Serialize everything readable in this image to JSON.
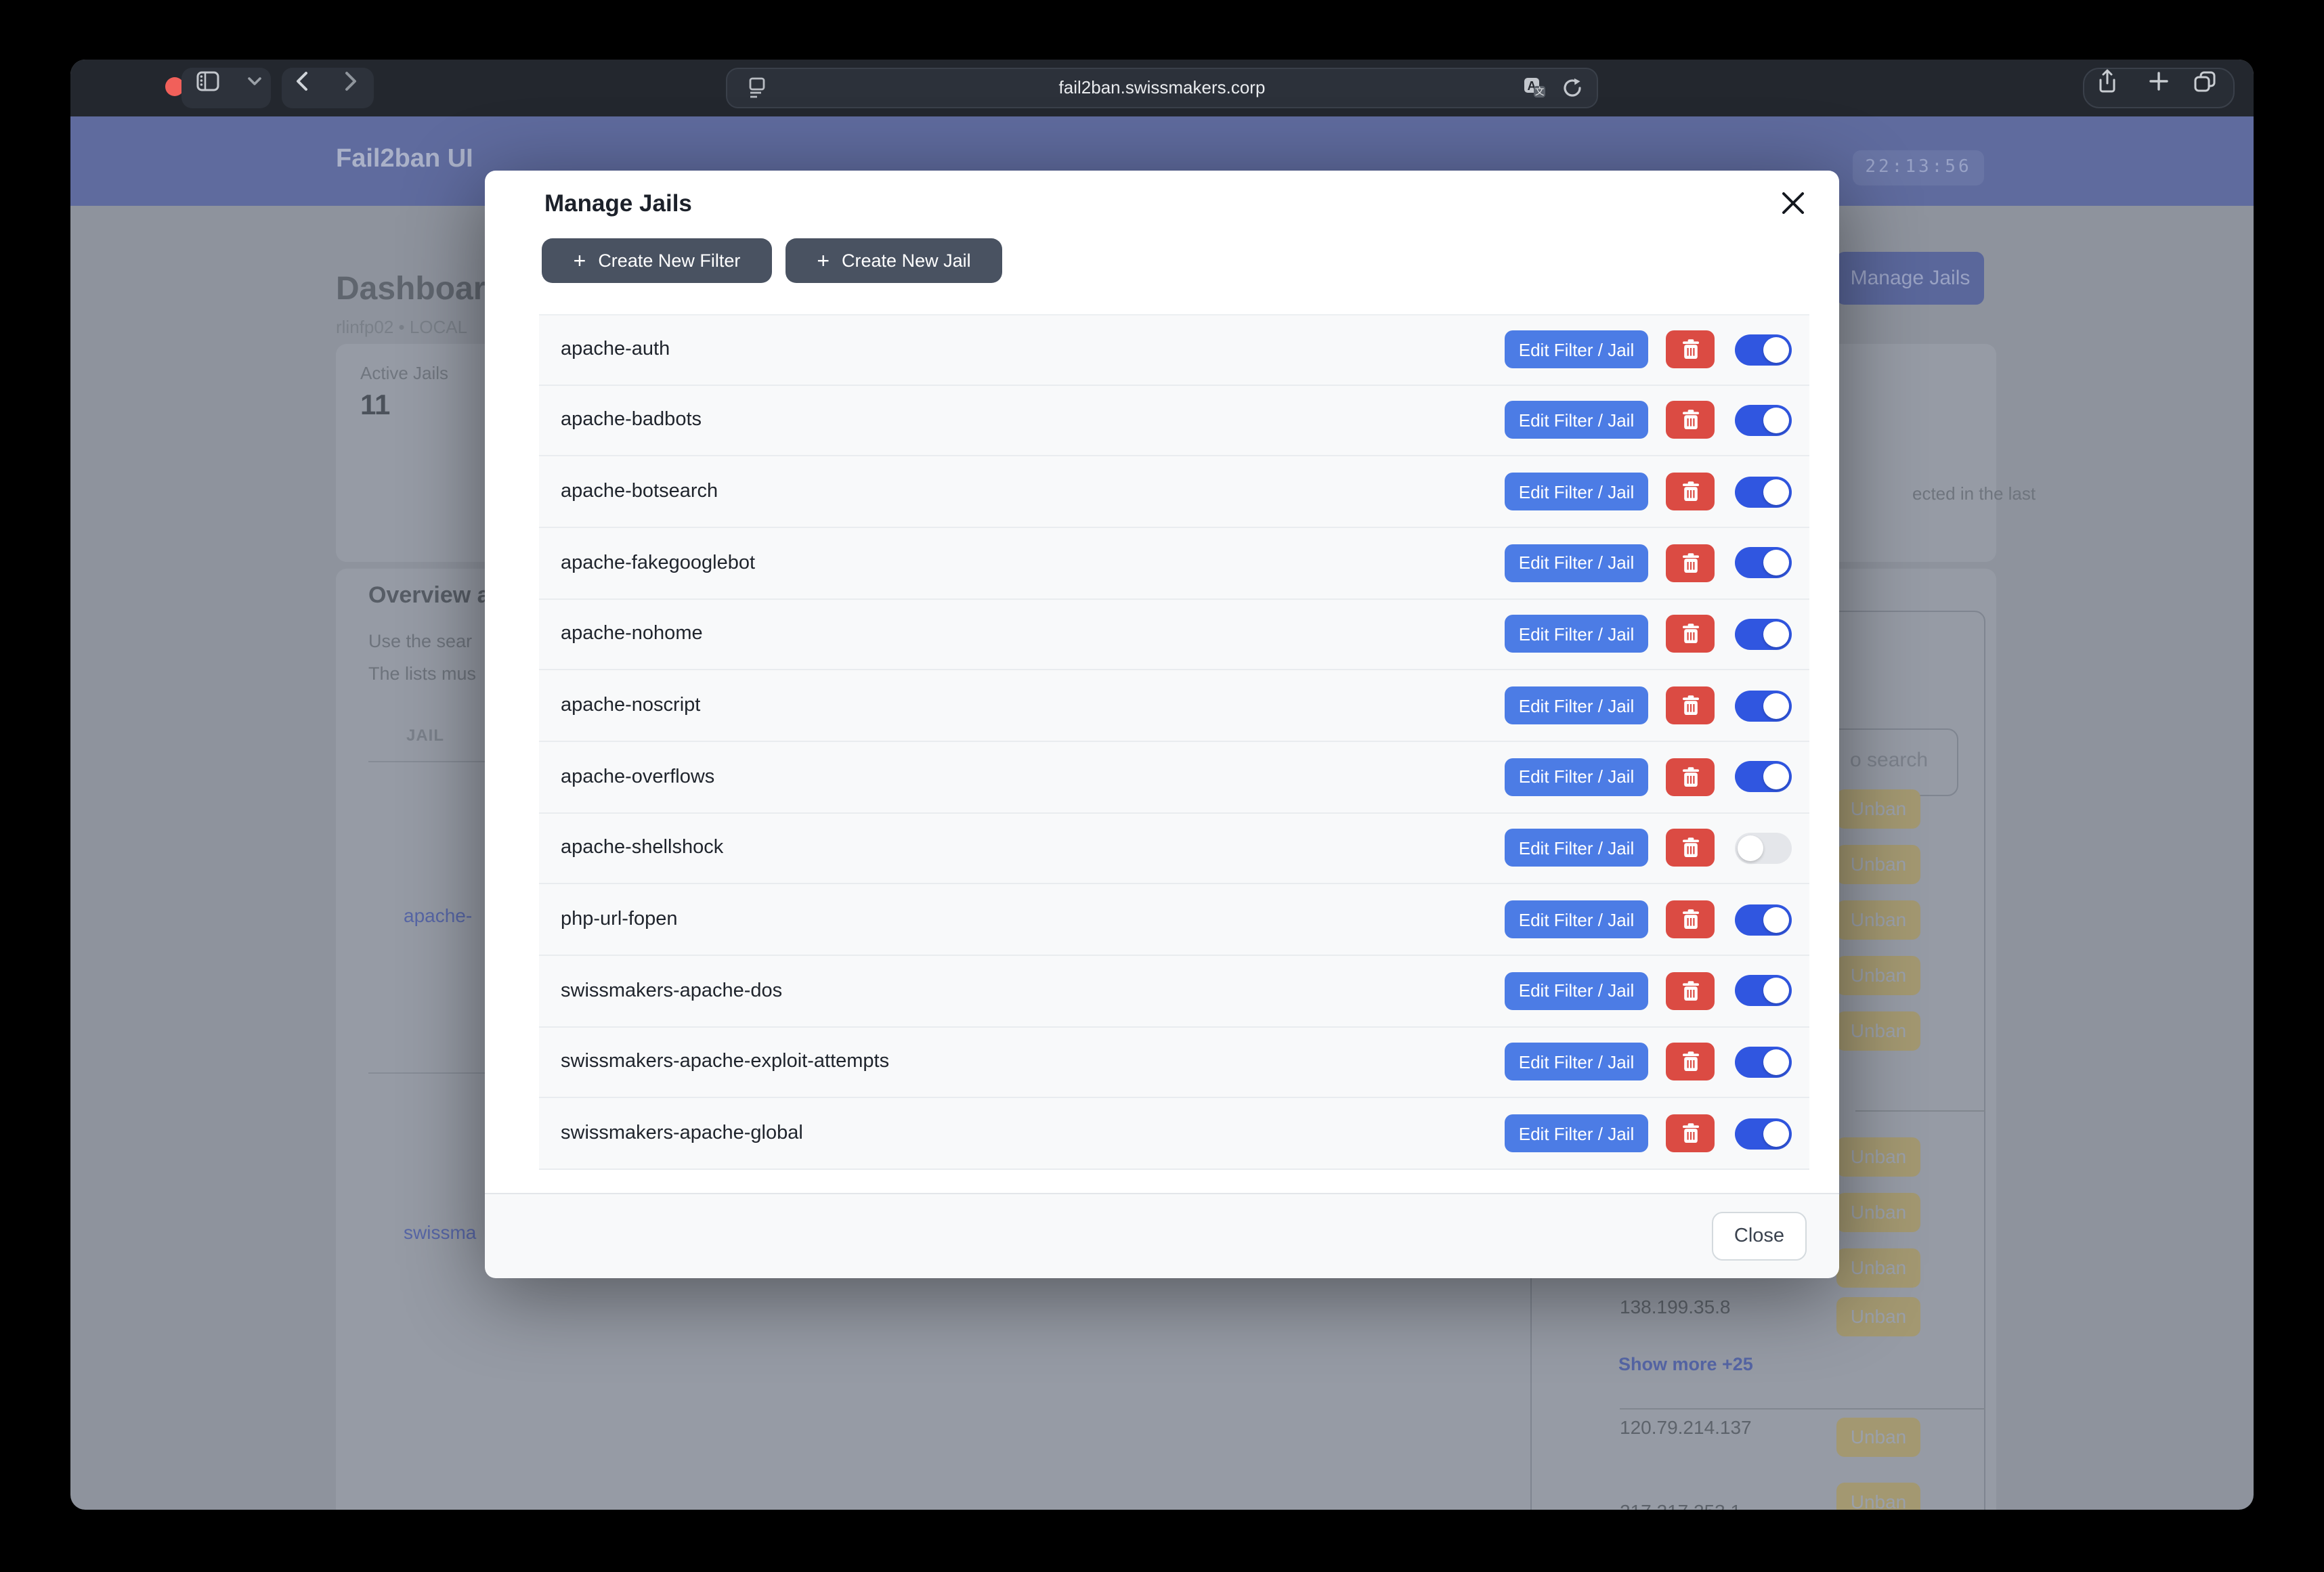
{
  "colors": {
    "accent_blue": "#4c7ce5",
    "danger_red": "#db4b43",
    "toggle_on": "#3056e0",
    "navbar_blue": "#5f6b9e",
    "dark_button": "#495261",
    "unban_tan": "#a39871",
    "row_bg": "#f8f9fa"
  },
  "browser": {
    "url": "fail2ban.swissmakers.corp",
    "icons": [
      "sidebar-icon",
      "chevron-down-icon",
      "back-icon",
      "forward-icon",
      "reader-icon",
      "translate-icon",
      "reload-icon",
      "share-icon",
      "new-tab-icon",
      "tabs-icon"
    ]
  },
  "navbar": {
    "brand": "Fail2ban UI",
    "clock": "22:13:56"
  },
  "dashboard": {
    "title_fragment": "Dashboar",
    "subtitle_fragment": "rlinfp02 • LOCAL",
    "manage_jails_button": "Manage Jails",
    "stat_card": {
      "label": "Active Jails",
      "value": "11"
    },
    "right_card_fragment": "ected in the last",
    "overview": {
      "title_fragment": "Overview a",
      "desc1_fragment": "Use the sear",
      "desc2_fragment": "The lists mus",
      "table_header": "JAIL",
      "jail_link1_fragment": "apache-",
      "jail_link2_fragment": "swissma",
      "search_placeholder_fragment": "o search",
      "unban_label": "Unban",
      "ip1": "138.199.35.8",
      "show_more": "Show more +25",
      "ip2": "120.79.214.137",
      "ip3_fragment": "217.217.253.1"
    }
  },
  "modal": {
    "title": "Manage Jails",
    "create_filter_label": "Create New Filter",
    "create_jail_label": "Create New Jail",
    "plus_glyph": "+",
    "edit_label": "Edit Filter / Jail",
    "close_label": "Close",
    "rows": [
      {
        "name": "apache-auth",
        "enabled": true
      },
      {
        "name": "apache-badbots",
        "enabled": true
      },
      {
        "name": "apache-botsearch",
        "enabled": true
      },
      {
        "name": "apache-fakegooglebot",
        "enabled": true
      },
      {
        "name": "apache-nohome",
        "enabled": true
      },
      {
        "name": "apache-noscript",
        "enabled": true
      },
      {
        "name": "apache-overflows",
        "enabled": true
      },
      {
        "name": "apache-shellshock",
        "enabled": false
      },
      {
        "name": "php-url-fopen",
        "enabled": true
      },
      {
        "name": "swissmakers-apache-dos",
        "enabled": true
      },
      {
        "name": "swissmakers-apache-exploit-attempts",
        "enabled": true
      },
      {
        "name": "swissmakers-apache-global",
        "enabled": true
      }
    ]
  }
}
